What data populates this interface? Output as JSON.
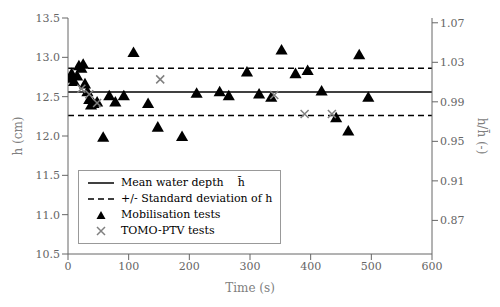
{
  "chart_data": {
    "type": "scatter",
    "xlabel": "Time (s)",
    "ylabel": "h (cm)",
    "y2label": "h/h̄ (-)",
    "xlim": [
      0,
      600
    ],
    "ylim": [
      10.5,
      13.5
    ],
    "y2lim": [
      0.8359872611,
      1.074840764
    ],
    "xticks": [
      0,
      100,
      200,
      300,
      400,
      500,
      600
    ],
    "yticks": [
      10.5,
      {
        "value": 11.0,
        "label": "11.0"
      },
      11.5,
      {
        "value": 12.0,
        "label": "12.0"
      },
      12.5,
      {
        "value": 13.0,
        "label": "13.0"
      },
      13.5
    ],
    "y2ticks": [
      0.87,
      0.91,
      0.95,
      0.99,
      1.03,
      1.07
    ],
    "grid": false,
    "legend": "lower left",
    "series": [
      {
        "name": "Mean water depth    h̄",
        "type": "hline",
        "color": "black",
        "line_style": "solid",
        "values": [
          12.56
        ]
      },
      {
        "name": "+/- Standard deviation of h",
        "type": "hline",
        "color": "black",
        "line_style": "dashed",
        "values": [
          12.86,
          12.26
        ]
      },
      {
        "name": "Mobilisation tests",
        "type": "scatter",
        "color": "black",
        "marker": "triangle",
        "x": [
          3,
          6,
          10,
          15,
          18,
          22,
          25,
          28,
          32,
          35,
          38,
          42,
          48,
          58,
          68,
          78,
          92,
          108,
          132,
          148,
          188,
          212,
          250,
          265,
          295,
          315,
          335,
          352,
          375,
          395,
          418,
          442,
          462,
          480,
          495
        ],
        "values": [
          12.72,
          12.78,
          12.68,
          12.75,
          12.88,
          12.85,
          12.9,
          12.65,
          12.55,
          12.45,
          12.38,
          12.4,
          12.42,
          11.97,
          12.5,
          12.42,
          12.5,
          13.05,
          12.4,
          12.1,
          11.98,
          12.53,
          12.55,
          12.5,
          12.8,
          12.52,
          12.48,
          13.08,
          12.78,
          12.82,
          12.56,
          12.22,
          12.05,
          13.02,
          12.48
        ]
      },
      {
        "name": "TOMO-PTV tests",
        "type": "scatter",
        "color": "gray",
        "marker": "x",
        "x": [
          22,
          35,
          48,
          152,
          340,
          390,
          435
        ],
        "values": [
          12.6,
          12.53,
          12.42,
          12.72,
          12.52,
          12.28,
          12.28
        ]
      }
    ]
  }
}
